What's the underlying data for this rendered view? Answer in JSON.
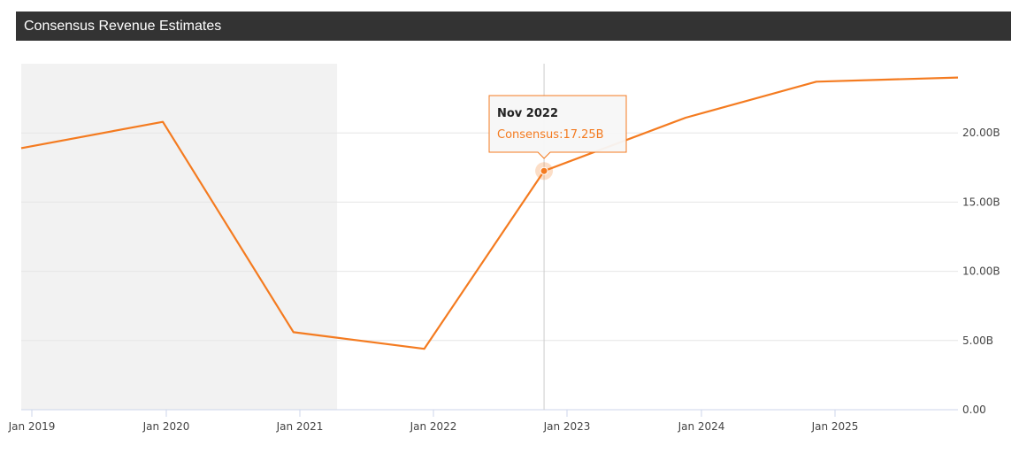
{
  "header": {
    "title": "Consensus Revenue Estimates"
  },
  "colors": {
    "line": "#f47b20",
    "header_bg": "#333333",
    "shaded_region": "#f2f2f2",
    "grid": "#e6e6e6"
  },
  "chart_data": {
    "type": "line",
    "title": "Consensus Revenue Estimates",
    "x_ticks": [
      "Jan 2019",
      "Jan 2020",
      "Jan 2021",
      "Jan 2022",
      "Jan 2023",
      "Jan 2024",
      "Jan 2025"
    ],
    "y_ticks": [
      "0.00",
      "5.00B",
      "10.00B",
      "15.00B",
      "20.00B"
    ],
    "ylim": [
      0,
      25
    ],
    "y_unit": "B",
    "xlim": [
      "2018-11",
      "2026-01"
    ],
    "shaded_range": [
      "2018-11",
      "2021-04"
    ],
    "grid": true,
    "series": [
      {
        "points": [
          {
            "x": "2018-11",
            "y": 18.9
          },
          {
            "x": "2019-12",
            "y": 20.8
          },
          {
            "x": "2020-12",
            "y": 5.6
          },
          {
            "x": "2021-12",
            "y": 4.4
          },
          {
            "x": "2022-11",
            "y": 17.25
          },
          {
            "x": "2023-12",
            "y": 21.1
          },
          {
            "x": "2024-12",
            "y": 23.7
          },
          {
            "x": "2026-01",
            "y": 24.0
          }
        ]
      }
    ],
    "tooltip": {
      "x": "2022-11",
      "title": "Nov 2022",
      "label": "Consensus:",
      "value": "17.25B"
    }
  }
}
